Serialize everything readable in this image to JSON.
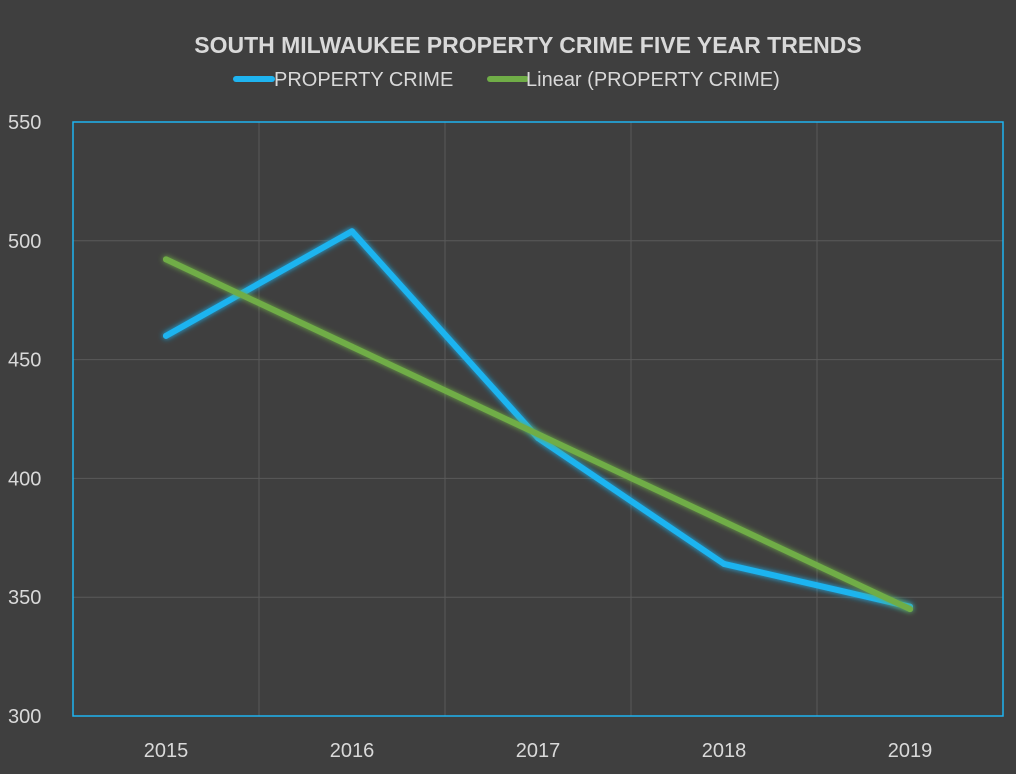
{
  "chart_data": {
    "type": "line",
    "title": "SOUTH MILWAUKEE PROPERTY CRIME FIVE YEAR TRENDS",
    "categories": [
      "2015",
      "2016",
      "2017",
      "2018",
      "2019"
    ],
    "series": [
      {
        "name": "PROPERTY CRIME",
        "values": [
          460,
          504,
          417,
          364,
          346
        ],
        "color": "#1fb4f0"
      },
      {
        "name": "Linear (PROPERTY CRIME)",
        "values": [
          492.2,
          455.4,
          418.6,
          381.8,
          345.0
        ],
        "color": "#70ad47"
      }
    ],
    "xlabel": "",
    "ylabel": "",
    "ylim": [
      300,
      550
    ],
    "yticks": [
      "550",
      "500",
      "450",
      "400",
      "350",
      "300"
    ],
    "grid": true,
    "legend": "top"
  },
  "colors": {
    "background": "#3f3f3f",
    "plot_border": "#1fb4f0",
    "text": "#d9d9d9",
    "grid": "#5a5a5a"
  }
}
